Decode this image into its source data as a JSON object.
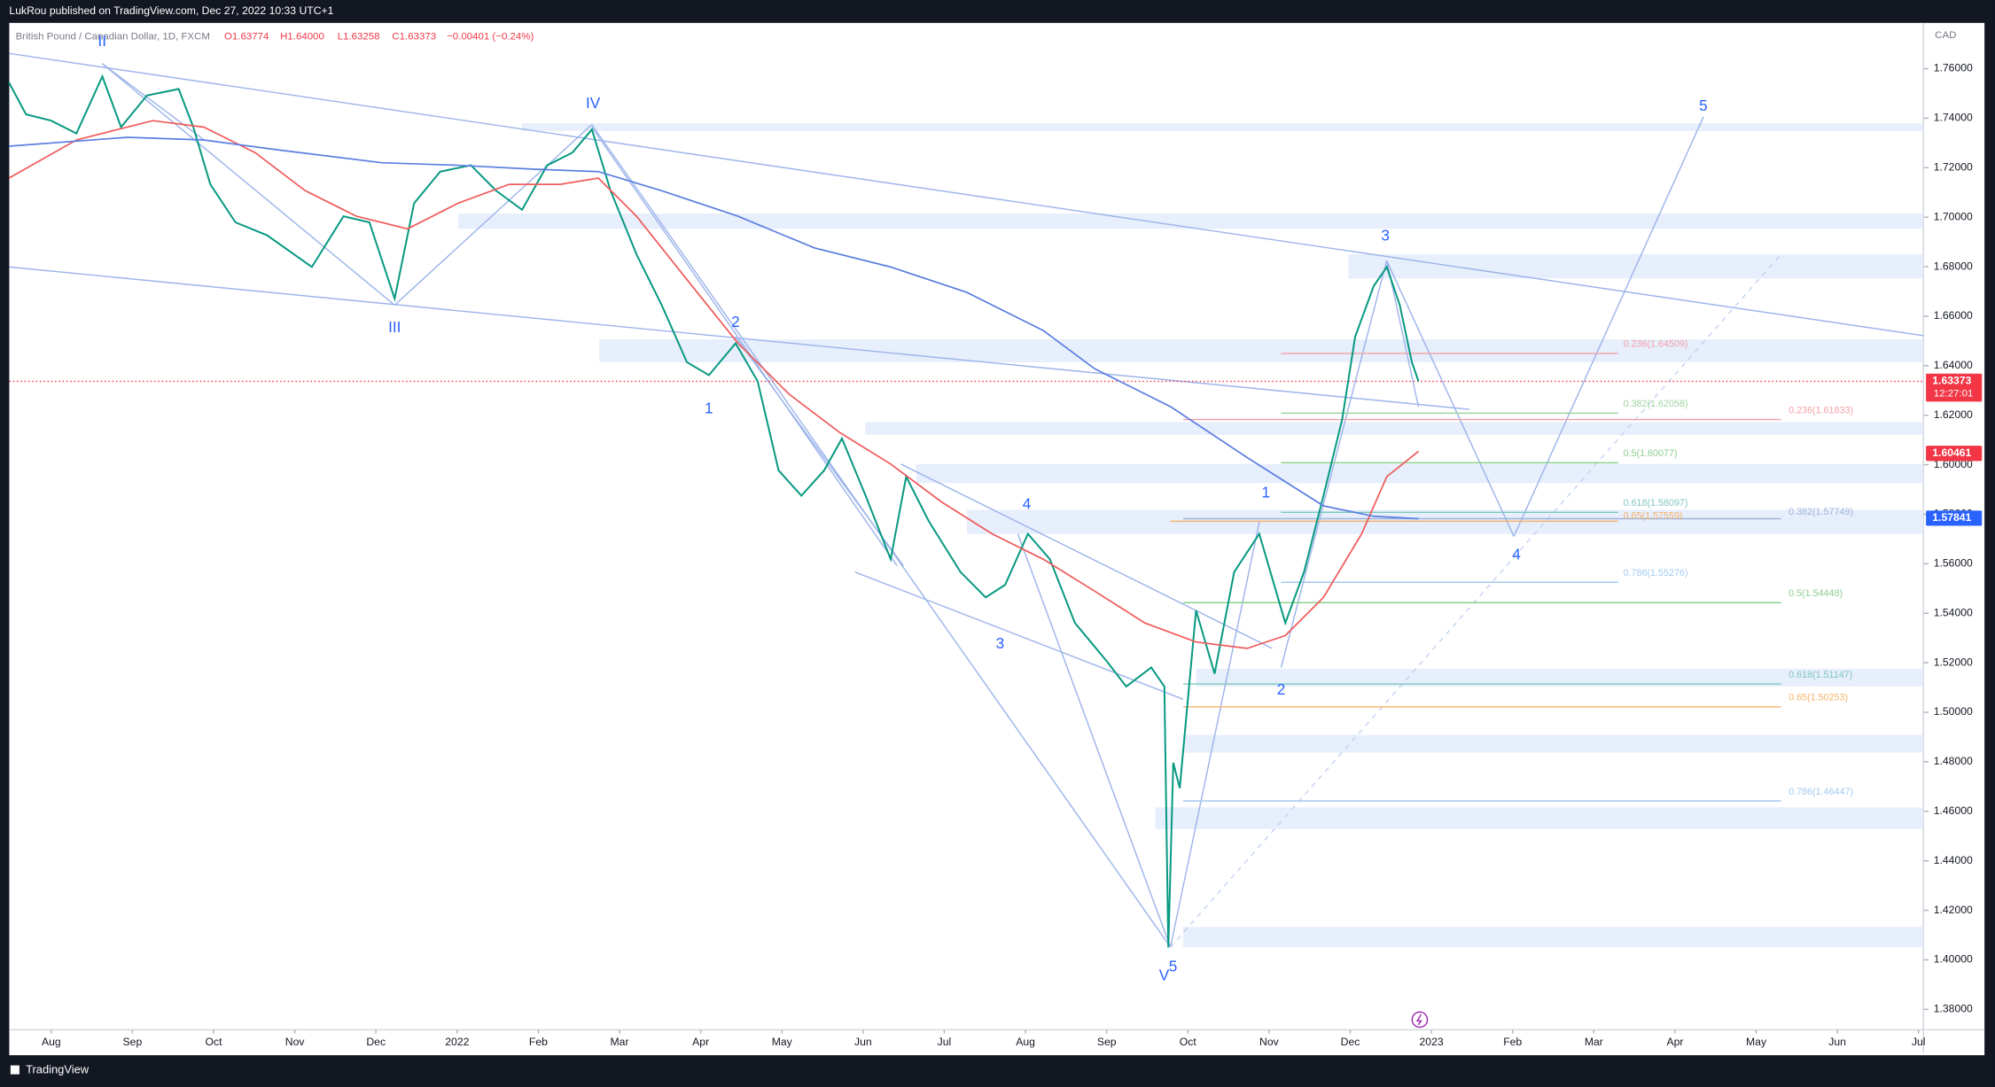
{
  "header": {
    "publisher": "LukRou published on TradingView.com, Dec 27, 2022 10:33 UTC+1"
  },
  "chart_data": {
    "type": "line",
    "title": "British Pound / Canadian Dollar, 1D, FXCM",
    "ohlc": [
      "O1.63774",
      "H1.64000",
      "L1.63258",
      "C1.63373",
      "−0.00401 (−0.24%)"
    ],
    "currency": "CAD",
    "series": [
      {
        "color": "#089981",
        "x": [
          -0.52,
          -0.31,
          0,
          0.31,
          0.63,
          0.86,
          1.18,
          1.57,
          1.75,
          1.96,
          2.27,
          2.66,
          3.21,
          3.6,
          3.92,
          4.23,
          4.47,
          4.79,
          5.17,
          5.48,
          5.8,
          6.11,
          6.42,
          6.66,
          6.89,
          7.21,
          7.52,
          7.83,
          8.1,
          8.43,
          8.7,
          8.96,
          9.24,
          9.52,
          9.74,
          10.03,
          10.34,
          10.53,
          10.81,
          11.2,
          11.51,
          11.75,
          12.03,
          12.3,
          12.61,
          13.0,
          13.24,
          13.55,
          13.71,
          13.76,
          13.82,
          13.9,
          14.1,
          14.33,
          14.57,
          14.88,
          15.2,
          15.43,
          15.67,
          15.9,
          16.06,
          16.29,
          16.45,
          16.61,
          16.76,
          16.84
        ],
        "values": [
          1.7544,
          1.7415,
          1.739,
          1.7338,
          1.7569,
          1.7364,
          1.7492,
          1.7518,
          1.7364,
          1.7133,
          1.6979,
          1.6927,
          1.6799,
          1.7004,
          1.6979,
          1.6671,
          1.7056,
          1.7184,
          1.721,
          1.7107,
          1.703,
          1.721,
          1.7261,
          1.7354,
          1.7107,
          1.685,
          1.6645,
          1.6414,
          1.6362,
          1.6491,
          1.6337,
          1.5977,
          1.5875,
          1.5977,
          1.6106,
          1.5875,
          1.5618,
          1.5952,
          1.5772,
          1.5567,
          1.5464,
          1.5515,
          1.5721,
          1.5618,
          1.5361,
          1.5207,
          1.5104,
          1.5181,
          1.5104,
          1.405,
          1.4796,
          1.4694,
          1.5412,
          1.5156,
          1.5567,
          1.5721,
          1.5361,
          1.5567,
          1.5875,
          1.6183,
          1.6517,
          1.6722,
          1.6799,
          1.6645,
          1.6414,
          1.6337
        ]
      },
      {
        "color": "#f05a5a",
        "x": [
          -0.52,
          0.31,
          1.25,
          1.88,
          2.51,
          3.13,
          3.76,
          4.39,
          5.01,
          5.64,
          6.27,
          6.74,
          7.21,
          7.83,
          8.46,
          9.09,
          9.71,
          10.34,
          10.97,
          11.59,
          12.22,
          12.85,
          13.47,
          14.1,
          14.73,
          15.2,
          15.67,
          16.14,
          16.45,
          16.84
        ],
        "values": [
          1.7158,
          1.7312,
          1.739,
          1.7364,
          1.7261,
          1.7107,
          1.7004,
          1.6953,
          1.7056,
          1.7133,
          1.7133,
          1.7158,
          1.7004,
          1.6748,
          1.6491,
          1.6285,
          1.6131,
          1.6003,
          1.5849,
          1.5721,
          1.5618,
          1.549,
          1.5361,
          1.5284,
          1.5258,
          1.531,
          1.5464,
          1.5721,
          1.5952,
          1.6054
        ]
      },
      {
        "color": "#5b7fe0",
        "x": [
          -0.52,
          0.94,
          1.88,
          2.82,
          4.07,
          5.01,
          5.95,
          6.74,
          7.52,
          8.46,
          9.4,
          10.34,
          11.28,
          12.22,
          12.85,
          13.79,
          14.73,
          15.67,
          16.29,
          16.84
        ],
        "values": [
          1.7287,
          1.7323,
          1.7312,
          1.7271,
          1.722,
          1.721,
          1.7194,
          1.7184,
          1.7107,
          1.7004,
          1.6876,
          1.6799,
          1.6696,
          1.6542,
          1.6388,
          1.6234,
          1.6029,
          1.5834,
          1.5792,
          1.5782
        ]
      }
    ],
    "xlim": [
      -0.517,
      23.06
    ],
    "xticks": [
      {
        "value": 0,
        "label": "Aug"
      },
      {
        "value": 1,
        "label": "Sep"
      },
      {
        "value": 2,
        "label": "Oct"
      },
      {
        "value": 3,
        "label": "Nov"
      },
      {
        "value": 4,
        "label": "Dec"
      },
      {
        "value": 5,
        "label": "2022"
      },
      {
        "value": 6,
        "label": "Feb"
      },
      {
        "value": 7,
        "label": "Mar"
      },
      {
        "value": 8,
        "label": "Apr"
      },
      {
        "value": 9,
        "label": "May"
      },
      {
        "value": 10,
        "label": "Jun"
      },
      {
        "value": 11,
        "label": "Jul"
      },
      {
        "value": 12,
        "label": "Aug"
      },
      {
        "value": 13,
        "label": "Sep"
      },
      {
        "value": 14,
        "label": "Oct"
      },
      {
        "value": 15,
        "label": "Nov"
      },
      {
        "value": 16,
        "label": "Dec"
      },
      {
        "value": 17,
        "label": "2023"
      },
      {
        "value": 18,
        "label": "Feb"
      },
      {
        "value": 19,
        "label": "Mar"
      },
      {
        "value": 20,
        "label": "Apr"
      },
      {
        "value": 21,
        "label": "May"
      },
      {
        "value": 22,
        "label": "Jun"
      },
      {
        "value": 23,
        "label": "Jul"
      }
    ],
    "ylim": [
      1.3625,
      1.7785
    ],
    "yticks": [
      {
        "value": 1.38,
        "label": "1.38000"
      },
      {
        "value": 1.4,
        "label": "1.40000"
      },
      {
        "value": 1.42,
        "label": "1.42000"
      },
      {
        "value": 1.44,
        "label": "1.44000"
      },
      {
        "value": 1.46,
        "label": "1.46000"
      },
      {
        "value": 1.48,
        "label": "1.48000"
      },
      {
        "value": 1.5,
        "label": "1.50000"
      },
      {
        "value": 1.52,
        "label": "1.52000"
      },
      {
        "value": 1.54,
        "label": "1.54000"
      },
      {
        "value": 1.56,
        "label": "1.56000"
      },
      {
        "value": 1.58,
        "label": "1.58000"
      },
      {
        "value": 1.6,
        "label": "1.60000"
      },
      {
        "value": 1.62,
        "label": "1.62000"
      },
      {
        "value": 1.64,
        "label": "1.64000"
      },
      {
        "value": 1.66,
        "label": "1.66000"
      },
      {
        "value": 1.68,
        "label": "1.68000"
      },
      {
        "value": 1.7,
        "label": "1.70000"
      },
      {
        "value": 1.72,
        "label": "1.72000"
      },
      {
        "value": 1.74,
        "label": "1.74000"
      },
      {
        "value": 1.76,
        "label": "1.76000"
      }
    ],
    "price_marks": [
      {
        "value": 1.63373,
        "color": "#f23645"
      },
      {
        "value": 1.60461,
        "color": "#f23645"
      },
      {
        "value": 1.57841,
        "color": "#2962ff"
      }
    ],
    "countdown": "12:27:01",
    "annotations": [
      {
        "text": "II",
        "color": "#2962ff"
      },
      {
        "text": "III",
        "color": "#2962ff"
      },
      {
        "text": "IV",
        "color": "#2962ff"
      },
      {
        "text": "V",
        "color": "#2962ff"
      },
      {
        "text": "1",
        "color": "#2962ff"
      },
      {
        "text": "2",
        "color": "#2962ff"
      },
      {
        "text": "3",
        "color": "#2962ff"
      },
      {
        "text": "4",
        "color": "#2962ff"
      },
      {
        "text": "5",
        "color": "#2962ff"
      },
      {
        "text": "1",
        "color": "#2962ff"
      },
      {
        "text": "2",
        "color": "#2962ff"
      },
      {
        "text": "3",
        "color": "#2962ff"
      },
      {
        "text": "4",
        "color": "#2962ff"
      },
      {
        "text": "5",
        "color": "#2962ff"
      },
      {
        "text": "0.236(1.64509)",
        "color": "#f4a0a6"
      },
      {
        "text": "0.382(1.62058)",
        "color": "#9fd4a2"
      },
      {
        "text": "0.236(1.61833)",
        "color": "#f4a0a6"
      },
      {
        "text": "0.5(1.60077)",
        "color": "#8ccf8f"
      },
      {
        "text": "0.618(1.58097)",
        "color": "#7fc7bd"
      },
      {
        "text": "0.65(1.57559)",
        "color": "#f5b26b"
      },
      {
        "text": "0.382(1.57749)",
        "color": "#9fb4d8"
      },
      {
        "text": "0.786(1.55276)",
        "color": "#a3c9f0"
      },
      {
        "text": "0.5(1.54448)",
        "color": "#8ccf8f"
      },
      {
        "text": "0.618(1.51147)",
        "color": "#7fc7bd"
      },
      {
        "text": "0.65(1.50253)",
        "color": "#f5b26b"
      },
      {
        "text": "0.786(1.46447)",
        "color": "#a3c9f0"
      }
    ]
  },
  "footer": {
    "brand": "TradingView"
  }
}
